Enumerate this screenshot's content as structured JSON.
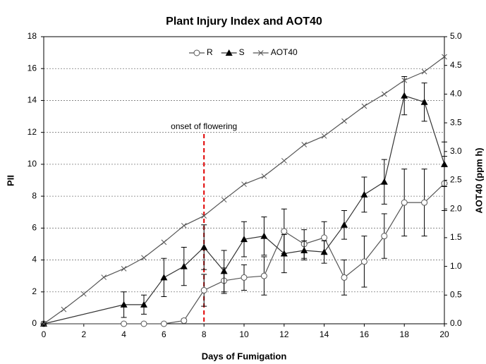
{
  "chart_data": {
    "type": "line",
    "title": "Plant Injury Index and AOT40",
    "x_label": "Days of Fumigation",
    "y_label": "PII",
    "y2_label": "AOT40 (ppm h)",
    "xlim": [
      0,
      20
    ],
    "xticks": [
      0,
      2,
      4,
      6,
      8,
      10,
      12,
      14,
      16,
      18,
      20
    ],
    "ylim": [
      0,
      18
    ],
    "yticks": [
      0,
      2,
      4,
      6,
      8,
      10,
      12,
      14,
      16,
      18
    ],
    "y2lim": [
      0,
      5
    ],
    "y2ticks": [
      {
        "value": 0,
        "label": "0.0"
      },
      {
        "value": 0.5,
        "label": "0.5"
      },
      {
        "value": 1,
        "label": "1.0"
      },
      {
        "value": 1.5,
        "label": "1.5"
      },
      {
        "value": 2,
        "label": "2.0"
      },
      {
        "value": 2.5,
        "label": "2.5"
      },
      {
        "value": 3,
        "label": "3.0"
      },
      {
        "value": 3.5,
        "label": "3.5"
      },
      {
        "value": 4,
        "label": "4.0"
      },
      {
        "value": 4.5,
        "label": "4.5"
      },
      {
        "value": 5,
        "label": "5.0"
      }
    ],
    "grid": true,
    "legend": "top",
    "annotation": {
      "text": "onset of flowering",
      "x": 8,
      "color": "#e00000"
    },
    "series": [
      {
        "name": "R",
        "color": "#555555",
        "marker": "circle",
        "x": [
          0,
          4,
          5,
          6,
          7,
          8,
          9,
          10,
          11,
          12,
          13,
          14,
          15,
          16,
          17,
          18,
          19,
          20
        ],
        "values": [
          0,
          0,
          0,
          0,
          0.2,
          2.1,
          2.7,
          2.9,
          3.0,
          5.8,
          5.0,
          5.4,
          2.9,
          3.9,
          5.5,
          7.6,
          7.6,
          8.8
        ],
        "errors": [
          0,
          0,
          0,
          0,
          0.1,
          1.0,
          0.8,
          0.8,
          1.2,
          1.4,
          0.9,
          1.0,
          1.1,
          1.6,
          1.4,
          2.1,
          2.1,
          1.7
        ]
      },
      {
        "name": "S",
        "color": "#333333",
        "marker": "triangle",
        "x": [
          0,
          4,
          5,
          6,
          7,
          8,
          9,
          10,
          11,
          12,
          13,
          14,
          15,
          16,
          17,
          18,
          19,
          20
        ],
        "values": [
          0,
          1.2,
          1.2,
          2.9,
          3.6,
          4.8,
          3.3,
          5.3,
          5.5,
          4.4,
          4.6,
          4.5,
          6.2,
          8.1,
          8.9,
          14.3,
          13.9,
          10.0
        ],
        "errors": [
          0,
          0.8,
          0.6,
          1.2,
          1.2,
          1.4,
          1.3,
          1.1,
          1.2,
          1.2,
          0.6,
          0.7,
          0.9,
          1.1,
          1.4,
          1.2,
          1.2,
          1.4
        ]
      },
      {
        "name": "AOT40",
        "color": "#555555",
        "marker": "cross",
        "axis": "y2",
        "x": [
          0,
          1,
          2,
          3,
          4,
          5,
          6,
          7,
          8,
          9,
          10,
          11,
          12,
          13,
          14,
          15,
          16,
          17,
          18,
          19,
          20
        ],
        "values": [
          0,
          0.25,
          0.52,
          0.81,
          0.96,
          1.15,
          1.42,
          1.71,
          1.88,
          2.16,
          2.43,
          2.57,
          2.84,
          3.12,
          3.27,
          3.53,
          3.79,
          4.0,
          4.24,
          4.39,
          4.65
        ]
      }
    ]
  }
}
